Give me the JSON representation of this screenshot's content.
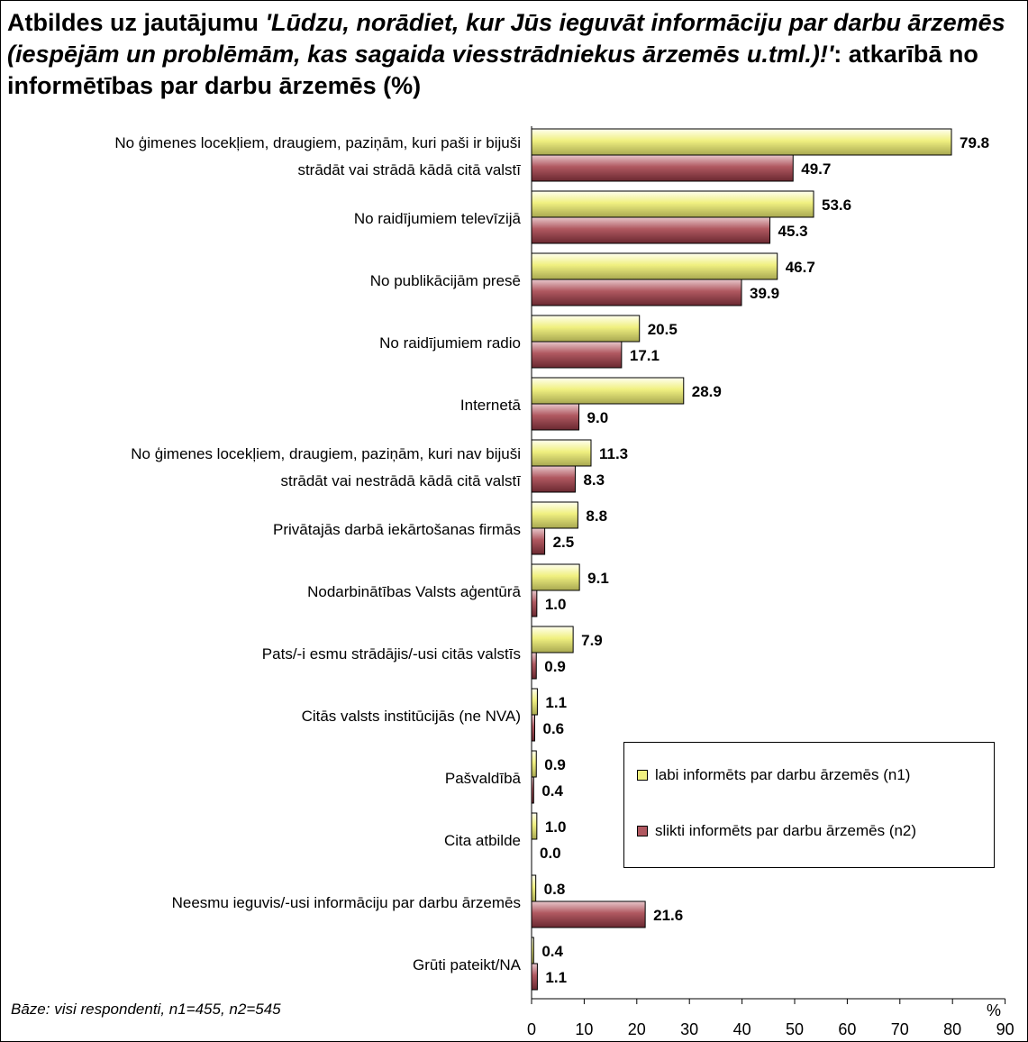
{
  "title": {
    "part1": "Atbildes uz jautājumu ",
    "part2": "'Lūdzu, norādiet, kur Jūs ieguvāt informāciju par darbu ārzemēs (iespējām un problēmām, kas sagaida viesstrādniekus ārzemēs u.tml.)!'",
    "part3": ": atkarībā no informētības par darbu ārzemēs (%)"
  },
  "base_note": "Bāze: visi respondenti, n1=455, n2=545",
  "colors": {
    "series1": "#f0f080",
    "series2": "#b05860"
  },
  "chart_data": {
    "type": "bar",
    "orientation": "horizontal",
    "title": "Atbildes uz jautājumu 'Lūdzu, norādiet, kur Jūs ieguvāt informāciju par darbu ārzemēs (iespējām un problēmām, kas sagaida viesstrādniekus ārzemēs u.tml.)!': atkarībā no informētības par darbu ārzemēs (%)",
    "xlabel": "%",
    "xlim": [
      0,
      90
    ],
    "xticks": [
      0,
      10,
      20,
      30,
      40,
      50,
      60,
      70,
      80,
      90
    ],
    "legend_position": "lower-right",
    "categories": [
      [
        "No ģimenes locekļiem, draugiem, paziņām, kuri paši ir bijuši",
        "strādāt vai strādā kādā citā valstī"
      ],
      [
        "No raidījumiem televīzijā"
      ],
      [
        "No publikācijām presē"
      ],
      [
        "No raidījumiem radio"
      ],
      [
        "Internetā"
      ],
      [
        "No ģimenes locekļiem, draugiem, paziņām, kuri nav bijuši",
        "strādāt vai nestrādā kādā citā valstī"
      ],
      [
        "Privātajās darbā iekārtošanas firmās"
      ],
      [
        "Nodarbinātības Valsts aģentūrā"
      ],
      [
        "Pats/-i esmu strādājis/-usi citās valstīs"
      ],
      [
        "Citās valsts institūcijās (ne NVA)"
      ],
      [
        "Pašvaldībā"
      ],
      [
        "Cita atbilde"
      ],
      [
        "Neesmu ieguvis/-usi informāciju par darbu ārzemēs"
      ],
      [
        "Grūti pateikt/NA"
      ]
    ],
    "series": [
      {
        "name": "labi informēts par darbu ārzemēs (n1)",
        "values": [
          79.8,
          53.6,
          46.7,
          20.5,
          28.9,
          11.3,
          8.8,
          9.1,
          7.9,
          1.1,
          0.9,
          1.0,
          0.8,
          0.4
        ],
        "labels": [
          "79.8",
          "53.6",
          "46.7",
          "20.5",
          "28.9",
          "11.3",
          "8.8",
          "9.1",
          "7.9",
          "1.1",
          "0.9",
          "1.0",
          "0.8",
          "0.4"
        ]
      },
      {
        "name": "slikti informēts par darbu ārzemēs (n2)",
        "values": [
          49.7,
          45.3,
          39.9,
          17.1,
          9.0,
          8.3,
          2.5,
          1.0,
          0.9,
          0.6,
          0.4,
          0.0,
          21.6,
          1.1
        ],
        "labels": [
          "49.7",
          "45.3",
          "39.9",
          "17.1",
          "9.0",
          "8.3",
          "2.5",
          "1.0",
          "0.9",
          "0.6",
          "0.4",
          "0.0",
          "21.6",
          "1.1"
        ]
      }
    ]
  }
}
